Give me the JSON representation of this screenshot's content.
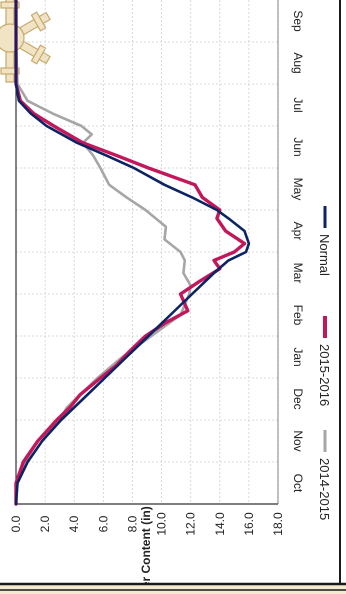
{
  "chart_data": {
    "type": "line",
    "title": "",
    "xlabel": "",
    "ylabel": "Water Content (in)",
    "ylim": [
      0,
      18
    ],
    "yticks": [
      "0.0",
      "2.0",
      "4.0",
      "6.0",
      "8.0",
      "10.0",
      "12.0",
      "14.0",
      "16.0",
      "18.0"
    ],
    "categories": [
      "Oct",
      "Nov",
      "Dec",
      "Jan",
      "Feb",
      "Mar",
      "Apr",
      "May",
      "Jun",
      "Jul",
      "Aug",
      "Sep"
    ],
    "x_unit": "month index (0 = Oct 1)",
    "grid": true,
    "legend_position": "bottom",
    "series": [
      {
        "name": "2014-2015",
        "color": "#a6a6a6",
        "x": [
          0,
          0.5,
          1.0,
          1.5,
          2.0,
          2.3,
          2.6,
          3.0,
          3.5,
          4.0,
          4.5,
          5.0,
          5.2,
          5.5,
          5.8,
          6.0,
          6.3,
          6.6,
          7.0,
          7.3,
          7.6,
          8.0,
          8.3,
          8.6,
          8.8,
          9.0,
          9.3,
          9.6,
          10,
          11,
          12
        ],
        "values": [
          0,
          0,
          0.6,
          1.5,
          3.0,
          3.5,
          4.4,
          5.6,
          7.3,
          9.3,
          11.3,
          11.9,
          12.0,
          11.5,
          11.6,
          11.3,
          10.2,
          10.3,
          8.9,
          7.6,
          6.4,
          5.8,
          5.3,
          4.6,
          5.2,
          4.5,
          2.5,
          0.8,
          0.1,
          0,
          0
        ]
      },
      {
        "name": "2015-2016",
        "color": "#c2185b",
        "x": [
          0,
          0.5,
          1.0,
          1.5,
          2.0,
          2.3,
          2.6,
          3.0,
          3.3,
          3.6,
          4.0,
          4.3,
          4.6,
          5.0,
          5.3,
          5.6,
          5.8,
          6.0,
          6.2,
          6.5,
          6.8,
          7.0,
          7.3,
          7.6,
          8.0,
          8.3,
          8.6,
          9.0,
          9.3,
          9.6,
          10,
          11,
          12
        ],
        "values": [
          0,
          0,
          0.5,
          1.5,
          2.8,
          3.7,
          4.4,
          5.8,
          6.9,
          7.7,
          8.9,
          10.2,
          11.8,
          11.3,
          12.6,
          14.0,
          13.6,
          15.0,
          15.7,
          14.4,
          13.8,
          14.0,
          12.8,
          12.3,
          9.1,
          6.9,
          4.6,
          2.6,
          1.2,
          0.3,
          0,
          0,
          0
        ]
      },
      {
        "name": "Normal",
        "color": "#0d2463",
        "x": [
          0,
          0.5,
          1.0,
          1.5,
          2.0,
          2.5,
          3.0,
          3.5,
          4.0,
          4.5,
          5.0,
          5.5,
          5.8,
          6.0,
          6.2,
          6.5,
          6.8,
          7.0,
          7.3,
          7.6,
          8.0,
          8.3,
          8.6,
          9.0,
          9.3,
          9.6,
          10,
          11,
          12
        ],
        "values": [
          0,
          0.1,
          0.8,
          1.8,
          3.1,
          4.6,
          6.1,
          7.6,
          9.1,
          10.6,
          12.1,
          13.6,
          14.6,
          15.8,
          16.0,
          15.7,
          14.6,
          13.8,
          12.1,
          10.2,
          8.1,
          6.2,
          4.2,
          2.1,
          1.0,
          0.2,
          0,
          0,
          0
        ]
      }
    ]
  }
}
